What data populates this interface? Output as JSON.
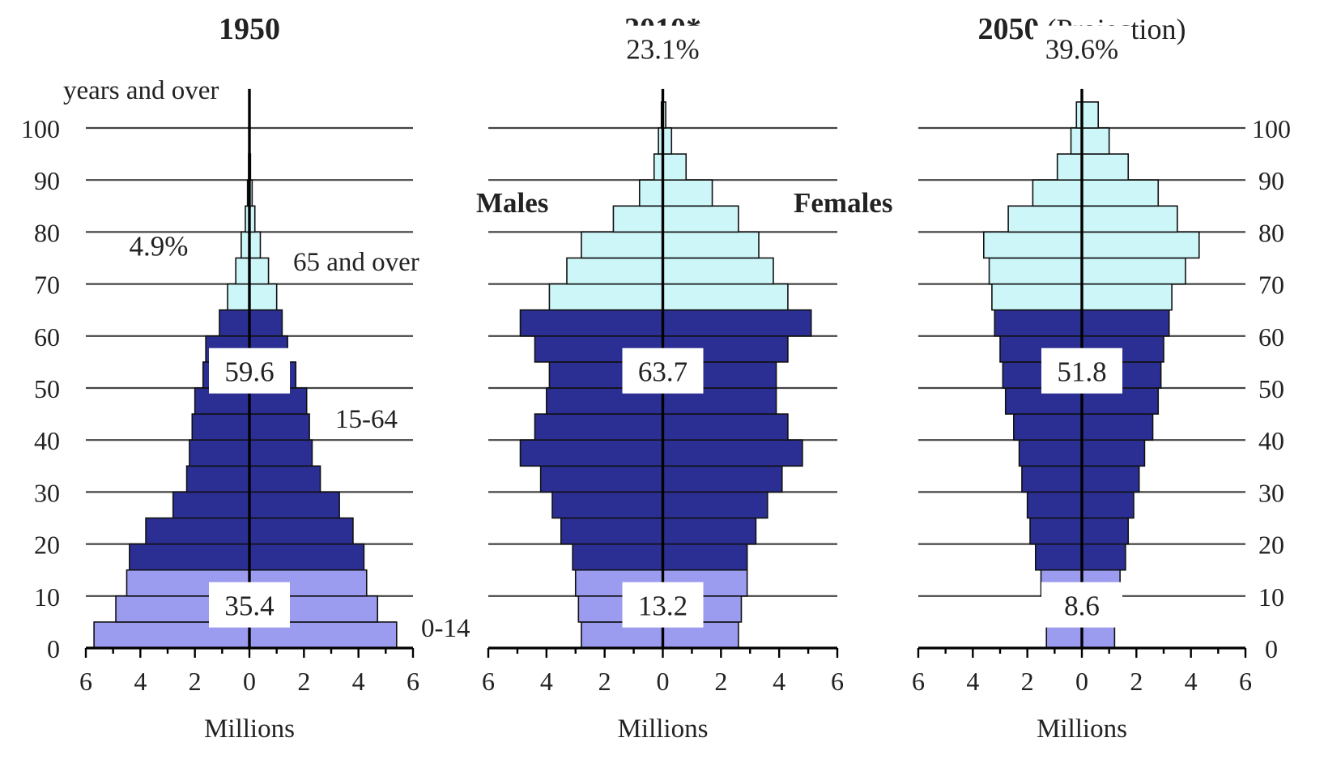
{
  "colors": {
    "age_0_14": "#9b9bf0",
    "age_15_64": "#2b2f94",
    "age_65_plus": "#ccf6f8",
    "outline": "#111111",
    "grid": "#444444"
  },
  "labels": {
    "years_and_over": "years and over",
    "males": "Males",
    "females": "Females",
    "group_65": "65 and over",
    "group_15": "15-64",
    "group_0": "0-14",
    "millions": "Millions"
  },
  "chart_data": [
    {
      "type": "bar",
      "title": "1950",
      "subtitle": "",
      "xlabel": "Millions",
      "xlim": [
        -6,
        6
      ],
      "x_tick_labels": [
        "6",
        "4",
        "2",
        "0",
        "2",
        "4",
        "6"
      ],
      "y_tick_labels": [
        "0",
        "10",
        "20",
        "30",
        "40",
        "50",
        "60",
        "70",
        "80",
        "90",
        "100"
      ],
      "age_groups": [
        "0-4",
        "5-9",
        "10-14",
        "15-19",
        "20-24",
        "25-29",
        "30-34",
        "35-39",
        "40-44",
        "45-49",
        "50-54",
        "55-59",
        "60-64",
        "65-69",
        "70-74",
        "75-79",
        "80-84",
        "85-89",
        "90-94",
        "95-99",
        "100+"
      ],
      "series": [
        {
          "name": "Males",
          "values": [
            5.7,
            4.9,
            4.5,
            4.4,
            3.8,
            2.8,
            2.3,
            2.2,
            2.1,
            2.0,
            1.7,
            1.6,
            1.1,
            0.8,
            0.5,
            0.3,
            0.15,
            0.07,
            0.03,
            0.01,
            0.0
          ]
        },
        {
          "name": "Females",
          "values": [
            5.4,
            4.7,
            4.3,
            4.2,
            3.8,
            3.3,
            2.6,
            2.3,
            2.2,
            2.1,
            1.7,
            1.4,
            1.2,
            1.0,
            0.7,
            0.4,
            0.2,
            0.1,
            0.04,
            0.01,
            0.0
          ]
        }
      ],
      "group_values": {
        "age_65_plus": "4.9%",
        "age_15_64": "59.6",
        "age_0_14": "35.4"
      }
    },
    {
      "type": "bar",
      "title": "2010*",
      "subtitle": "",
      "xlabel": "Millions",
      "xlim": [
        -6,
        6
      ],
      "x_tick_labels": [
        "6",
        "4",
        "2",
        "0",
        "2",
        "4",
        "6"
      ],
      "y_tick_labels": [],
      "age_groups": [
        "0-4",
        "5-9",
        "10-14",
        "15-19",
        "20-24",
        "25-29",
        "30-34",
        "35-39",
        "40-44",
        "45-49",
        "50-54",
        "55-59",
        "60-64",
        "65-69",
        "70-74",
        "75-79",
        "80-84",
        "85-89",
        "90-94",
        "95-99",
        "100+"
      ],
      "series": [
        {
          "name": "Males",
          "values": [
            2.8,
            2.9,
            3.0,
            3.1,
            3.5,
            3.8,
            4.2,
            4.9,
            4.4,
            4.0,
            3.9,
            4.4,
            4.9,
            3.9,
            3.3,
            2.8,
            1.7,
            0.8,
            0.3,
            0.15,
            0.05
          ]
        },
        {
          "name": "Females",
          "values": [
            2.6,
            2.7,
            2.9,
            2.9,
            3.2,
            3.6,
            4.1,
            4.8,
            4.3,
            3.9,
            3.9,
            4.3,
            5.1,
            4.3,
            3.8,
            3.3,
            2.6,
            1.7,
            0.8,
            0.3,
            0.1
          ]
        }
      ],
      "group_values": {
        "age_65_plus": "23.1%",
        "age_15_64": "63.7",
        "age_0_14": "13.2"
      }
    },
    {
      "type": "bar",
      "title": "2050",
      "subtitle": "(Projection)",
      "xlabel": "Millions",
      "xlim": [
        -6,
        6
      ],
      "x_tick_labels": [
        "6",
        "4",
        "2",
        "0",
        "2",
        "4",
        "6"
      ],
      "y_tick_labels": [
        "0",
        "10",
        "20",
        "30",
        "40",
        "50",
        "60",
        "70",
        "80",
        "90",
        "100"
      ],
      "age_groups": [
        "0-4",
        "5-9",
        "10-14",
        "15-19",
        "20-24",
        "25-29",
        "30-34",
        "35-39",
        "40-44",
        "45-49",
        "50-54",
        "55-59",
        "60-64",
        "65-69",
        "70-74",
        "75-79",
        "80-84",
        "85-89",
        "90-94",
        "95-99",
        "100+"
      ],
      "series": [
        {
          "name": "Males",
          "values": [
            1.3,
            1.4,
            1.5,
            1.7,
            1.9,
            2.0,
            2.2,
            2.3,
            2.5,
            2.8,
            2.9,
            3.0,
            3.2,
            3.3,
            3.4,
            3.6,
            2.7,
            1.8,
            0.9,
            0.4,
            0.2
          ]
        },
        {
          "name": "Females",
          "values": [
            1.2,
            1.3,
            1.4,
            1.6,
            1.7,
            1.9,
            2.1,
            2.3,
            2.6,
            2.8,
            2.9,
            3.0,
            3.2,
            3.3,
            3.8,
            4.3,
            3.5,
            2.8,
            1.7,
            1.0,
            0.6
          ]
        }
      ],
      "group_values": {
        "age_65_plus": "39.6%",
        "age_15_64": "51.8",
        "age_0_14": "8.6"
      }
    }
  ]
}
